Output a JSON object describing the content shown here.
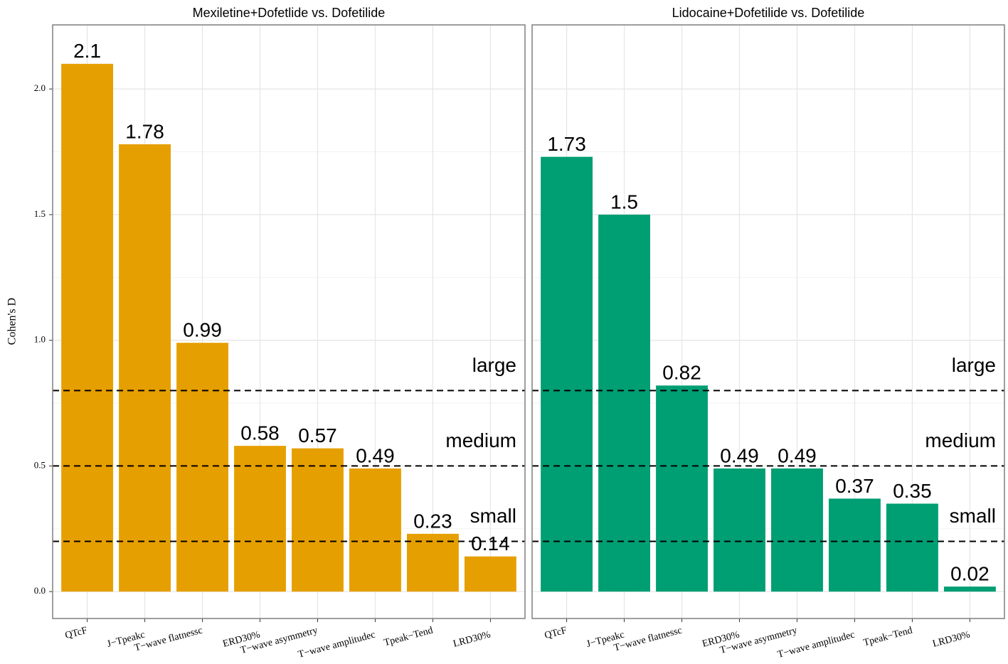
{
  "chart_data": [
    {
      "type": "bar",
      "title": "Mexiletine+Dofetlide vs. Dofetilide",
      "ylabel": "Cohen's D",
      "categories": [
        "QTcF",
        "J−Tpeakc",
        "T−wave flatnessc",
        "ERD30%",
        "T−wave asymmetry",
        "T−wave amplitudec",
        "Tpeak−Tend",
        "LRD30%"
      ],
      "values": [
        2.1,
        1.78,
        0.99,
        0.58,
        0.57,
        0.49,
        0.23,
        0.14
      ],
      "color": "#e69f00",
      "ylim": [
        -0.107,
        2.255
      ],
      "yticks": [
        {
          "value": 0,
          "label": "0.0"
        },
        0.5,
        {
          "value": 1,
          "label": "1.0"
        },
        1.5,
        {
          "value": 2,
          "label": "2.0"
        }
      ],
      "reference_lines": [
        {
          "value": 0.8,
          "label": "large"
        },
        {
          "value": 0.5,
          "label": "medium"
        },
        {
          "value": 0.2,
          "label": "small"
        }
      ],
      "grid": true
    },
    {
      "type": "bar",
      "title": "Lidocaine+Dofetilide vs. Dofetilide",
      "categories": [
        "QTcF",
        "J−Tpeakc",
        "T−wave flatnessc",
        "ERD30%",
        "T−wave asymmetry",
        "T−wave amplitudec",
        "Tpeak−Tend",
        "LRD30%"
      ],
      "values": [
        1.73,
        1.5,
        0.82,
        0.49,
        0.49,
        0.37,
        0.35,
        0.02
      ],
      "color": "#009e73",
      "ylim": [
        -0.107,
        2.255
      ],
      "yticks": [
        0,
        0.5,
        1,
        1.5,
        2
      ],
      "reference_lines": [
        {
          "value": 0.8,
          "label": "large"
        },
        {
          "value": 0.5,
          "label": "medium"
        },
        {
          "value": 0.2,
          "label": "small"
        }
      ],
      "grid": true
    }
  ]
}
